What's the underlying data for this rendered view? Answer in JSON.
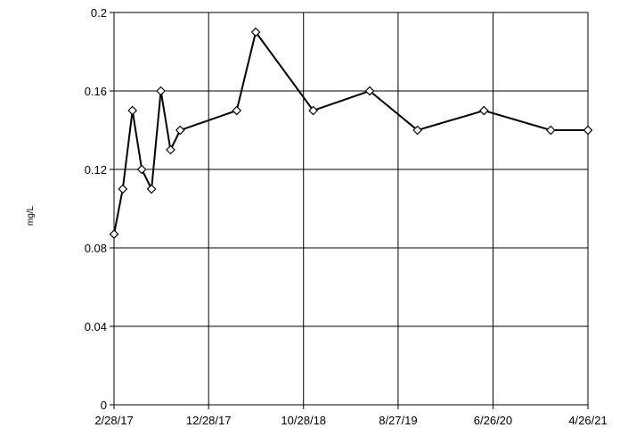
{
  "chart_data": {
    "type": "line",
    "title": "",
    "xlabel": "",
    "ylabel": "mg/L",
    "ylim": [
      0,
      0.2
    ],
    "xlim": [
      "2017-02-28",
      "2021-04-26"
    ],
    "grid": true,
    "legend": "none",
    "line_color": "#000000",
    "marker": "diamond",
    "x_ticks": [
      {
        "date": "2017-02-28",
        "label": "2/28/17"
      },
      {
        "date": "2017-12-28",
        "label": "12/28/17"
      },
      {
        "date": "2018-10-28",
        "label": "10/28/18"
      },
      {
        "date": "2019-08-27",
        "label": "8/27/19"
      },
      {
        "date": "2020-06-26",
        "label": "6/26/20"
      },
      {
        "date": "2021-04-26",
        "label": "4/26/21"
      }
    ],
    "y_ticks": [
      {
        "value": 0,
        "label": "0"
      },
      {
        "value": 0.04,
        "label": "0.04"
      },
      {
        "value": 0.08,
        "label": "0.08"
      },
      {
        "value": 0.12,
        "label": "0.12"
      },
      {
        "value": 0.16,
        "label": "0.16"
      },
      {
        "value": 0.2,
        "label": "0.2"
      }
    ],
    "series": [
      {
        "x": [
          "2017-02-28",
          "2017-03-28",
          "2017-04-28",
          "2017-05-28",
          "2017-06-28",
          "2017-07-28",
          "2017-08-28",
          "2017-09-28",
          "2018-03-28",
          "2018-05-28",
          "2018-11-28",
          "2019-05-28",
          "2019-10-28",
          "2020-05-28",
          "2020-12-28",
          "2021-04-26"
        ],
        "y": [
          0.087,
          0.11,
          0.15,
          0.12,
          0.11,
          0.16,
          0.13,
          0.14,
          0.15,
          0.19,
          0.15,
          0.16,
          0.14,
          0.15,
          0.14,
          0.14
        ]
      }
    ]
  }
}
